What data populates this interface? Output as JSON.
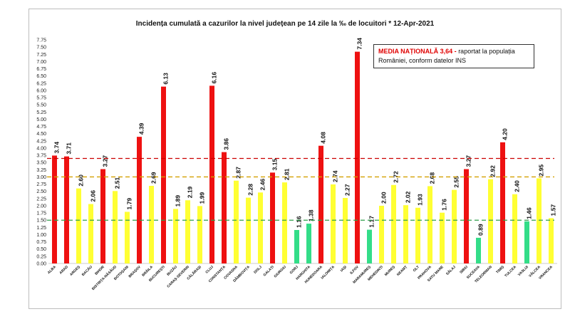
{
  "title": "Incidența cumulată a cazurilor la nivel județean pe 14 zile la ‰ de locuitori *   12-Apr-2021",
  "note": {
    "highlight": "MEDIA NAȚIONALĂ  3,64 -",
    "text": " raportat la populația României, conform datelor INS"
  },
  "colors": {
    "red": "#ee1111",
    "yellow": "#ffff33",
    "green": "#33dd88",
    "line_red": "#cc0000",
    "line_yellow": "#d4a000",
    "line_green": "#2e9e4a"
  },
  "chart_data": {
    "type": "bar",
    "title": "Incidența cumulată a cazurilor la nivel județean pe 14 zile la ‰ de locuitori *   12-Apr-2021",
    "ylim": [
      0,
      7.75
    ],
    "y_ticks": [
      "0.00",
      "0.25",
      "0.50",
      "0.75",
      "1.00",
      "1.25",
      "1.50",
      "1.75",
      "2.00",
      "2.25",
      "2.50",
      "2.75",
      "3.00",
      "3.25",
      "3.50",
      "3.75",
      "4.00",
      "4.25",
      "4.50",
      "4.75",
      "5.00",
      "5.25",
      "5.50",
      "5.75",
      "6.00",
      "6.25",
      "6.50",
      "6.75",
      "7.00",
      "7.25",
      "7.50",
      "7.75"
    ],
    "categories": [
      "ALBA",
      "ARAD",
      "ARGEȘ",
      "BACĂU",
      "BIHOR",
      "BISTRIȚA-NĂSĂUD",
      "BOTOȘANI",
      "BRAȘOV",
      "BRĂILA",
      "BUCUREȘTI",
      "BUZĂU",
      "CARAȘ-SEVERIN",
      "CĂLĂRAȘI",
      "CLUJ",
      "CONSTANȚA",
      "COVASNA",
      "DÂMBOVIȚA",
      "DOLJ",
      "GALAȚI",
      "GIURGIU",
      "GORJ",
      "HARGHITA",
      "HUNEDOARA",
      "IALOMIȚA",
      "IAȘI",
      "ILFOV",
      "MARAMUREȘ",
      "MEHEDINȚI",
      "MUREȘ",
      "NEAMȚ",
      "OLT",
      "PRAHOVA",
      "SATU MARE",
      "SĂLAJ",
      "SIBIU",
      "SUCEAVA",
      "TELEORMAN",
      "TIMIȘ",
      "TULCEA",
      "VASLUI",
      "VÂLCEA",
      "VRANCEA"
    ],
    "values": [
      3.74,
      3.71,
      2.6,
      2.06,
      3.27,
      2.51,
      1.79,
      4.39,
      2.69,
      6.13,
      1.89,
      2.19,
      1.99,
      6.16,
      3.86,
      2.87,
      2.28,
      2.46,
      3.15,
      2.81,
      1.16,
      1.38,
      4.08,
      2.74,
      2.27,
      7.34,
      1.17,
      2.0,
      2.72,
      2.02,
      1.93,
      2.68,
      1.76,
      2.55,
      3.27,
      0.89,
      2.92,
      4.2,
      2.4,
      1.46,
      2.95,
      1.57
    ],
    "value_labels": [
      "3.74",
      "3.71",
      "2.60",
      "2.06",
      "3.27",
      "2.51",
      "1.79",
      "4.39",
      "2.69",
      "6.13",
      "1.89",
      "2.19",
      "1.99",
      "6.16",
      "3.86",
      "2.87",
      "2.28",
      "2.46",
      "3.15",
      "2.81",
      "1.16",
      "1.38",
      "4.08",
      "2.74",
      "2.27",
      "7.34",
      "1.17",
      "2.00",
      "2.72",
      "2.02",
      "1.93",
      "2.68",
      "1.76",
      "2.55",
      "3.27",
      "0.89",
      "2.92",
      "4.20",
      "2.40",
      "1.46",
      "2.95",
      "1.57"
    ],
    "bar_colors": [
      "red",
      "red",
      "yellow",
      "yellow",
      "red",
      "yellow",
      "yellow",
      "red",
      "yellow",
      "red",
      "yellow",
      "yellow",
      "yellow",
      "red",
      "red",
      "yellow",
      "yellow",
      "yellow",
      "red",
      "yellow",
      "green",
      "green",
      "red",
      "yellow",
      "yellow",
      "red",
      "green",
      "yellow",
      "yellow",
      "yellow",
      "yellow",
      "yellow",
      "yellow",
      "yellow",
      "red",
      "green",
      "yellow",
      "red",
      "yellow",
      "green",
      "yellow",
      "yellow"
    ],
    "threshold_lines": [
      {
        "value": 3.64,
        "color": "line_red"
      },
      {
        "value": 3.0,
        "color": "line_yellow"
      },
      {
        "value": 1.5,
        "color": "line_green"
      }
    ],
    "grid": false,
    "legend": "none"
  }
}
